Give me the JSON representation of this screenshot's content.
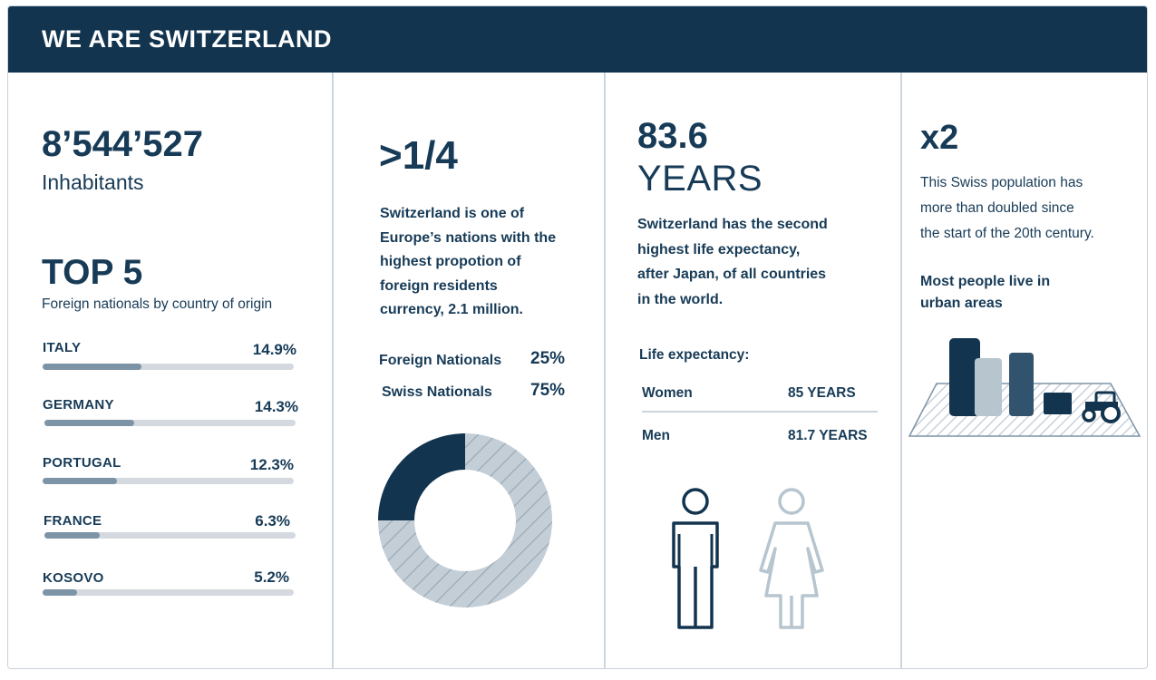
{
  "header": {
    "title": "WE ARE SWITZERLAND"
  },
  "population": {
    "value": "8’544’527",
    "label": "Inhabitants"
  },
  "top5": {
    "title": "TOP 5",
    "subtitle": "Foreign nationals by country of origin",
    "items": [
      {
        "country": "ITALY",
        "pct": "14.9%",
        "share": 0.149
      },
      {
        "country": "GERMANY",
        "pct": "14.3%",
        "share": 0.143
      },
      {
        "country": "PORTUGAL",
        "pct": "12.3%",
        "share": 0.123
      },
      {
        "country": "FRANCE",
        "pct": "6.3%",
        "share": 0.063
      },
      {
        "country": "KOSOVO",
        "pct": "5.2%",
        "share": 0.052
      }
    ]
  },
  "foreign": {
    "headline": ">1/4",
    "text": [
      "Switzerland is one of",
      "Europe’s nations with the",
      "highest propotion of",
      "foreign residents",
      "currency, 2.1 million."
    ],
    "rows": [
      {
        "label": "Foreign Nationals",
        "value": "25%"
      },
      {
        "label": "Swiss Nationals",
        "value": "75%"
      }
    ],
    "donut": {
      "foreign_share": 0.25,
      "swiss_share": 0.75,
      "foreign_color": "#12344f",
      "swiss_color": "#c4ced6"
    }
  },
  "life": {
    "value": "83.6",
    "unit": "YEARS",
    "text": [
      "Switzerland has the second",
      "highest life expectancy,",
      "after Japan, of all countries",
      "in the world."
    ],
    "table_title": "Life expectancy:",
    "rows": [
      {
        "label": "Women",
        "value": "85 YEARS"
      },
      {
        "label": "Men",
        "value": "81.7 YEARS"
      }
    ],
    "icons": {
      "man": "man-icon",
      "woman": "woman-icon"
    }
  },
  "growth": {
    "value": "x2",
    "text": [
      "This Swiss population has",
      "more than doubled since",
      "the start of the 20th century."
    ],
    "urban_text": [
      "Most people live in",
      "urban areas"
    ],
    "icons": {
      "city": "city-buildings-icon",
      "tractor": "tractor-icon"
    }
  },
  "colors": {
    "navy": "#12344f",
    "text": "#173b57",
    "bar": "#7d93a6",
    "track": "#d3d9de",
    "light_blue": "#b7c5cf",
    "mid_blue": "#31536e"
  }
}
